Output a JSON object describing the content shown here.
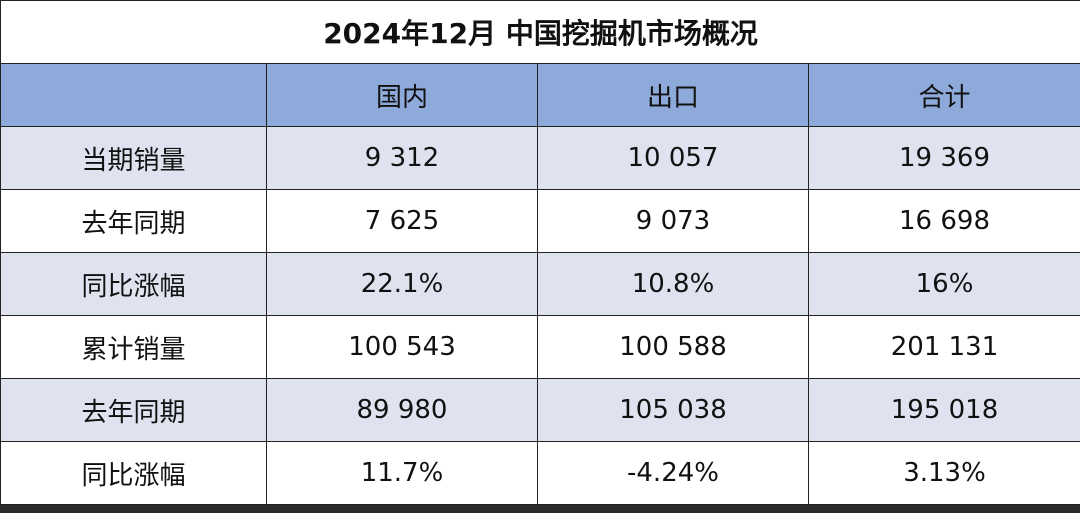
{
  "title": "2024年12月 中国挖掘机市场概况",
  "table": {
    "header": [
      "国内",
      "出口",
      "合计"
    ],
    "rows": [
      {
        "label": "当期销量",
        "cells": [
          "9 312",
          "10 057",
          "19 369"
        ]
      },
      {
        "label": "去年同期",
        "cells": [
          "7 625",
          "9 073",
          "16 698"
        ]
      },
      {
        "label": "同比涨幅",
        "cells": [
          "22.1%",
          "10.8%",
          "16%"
        ]
      },
      {
        "label": "累计销量",
        "cells": [
          "100 543",
          "100 588",
          "201 131"
        ]
      },
      {
        "label": "去年同期",
        "cells": [
          "89 980",
          "105 038",
          "195 018"
        ]
      },
      {
        "label": "同比涨幅",
        "cells": [
          "11.7%",
          "-4.24%",
          "3.13%"
        ]
      }
    ]
  }
}
